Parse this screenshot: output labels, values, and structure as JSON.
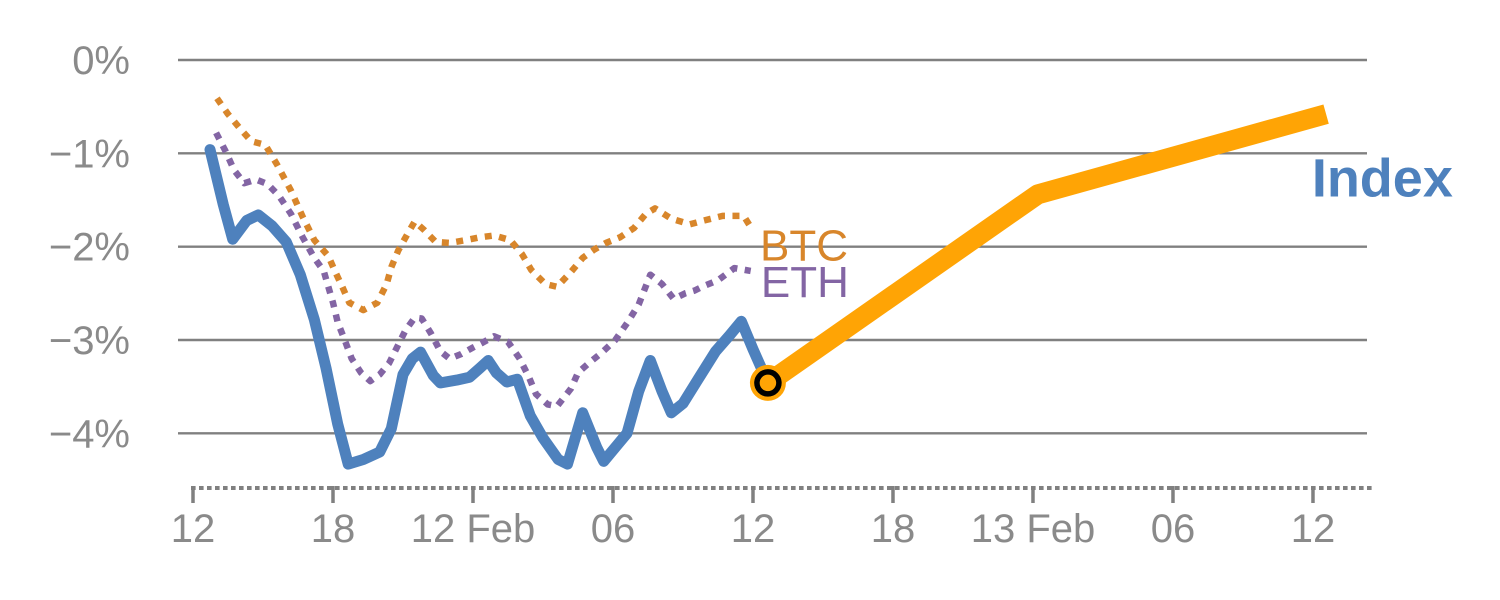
{
  "colors": {
    "index_blue": "#4E81BD",
    "btc_orange": "#D8862B",
    "eth_purple": "#8365A4",
    "forecast_amber": "#FFA405",
    "marker_ring_black": "#000000",
    "grid_gray": "#808080",
    "tick_text_gray": "#8A8A8A",
    "background": "#FFFFFF"
  },
  "chart_data": {
    "type": "line",
    "title": "",
    "grid": "horizontal",
    "legend_position": "inline-end-labels",
    "x_axis": {
      "unit": "time (6-hour major ticks)",
      "tick_labels": [
        "12",
        "18",
        "12 Feb",
        "06",
        "12",
        "18",
        "13 Feb",
        "06",
        "12"
      ],
      "tick_hours": [
        0,
        6,
        12,
        18,
        24,
        30,
        36,
        42,
        48
      ],
      "range_hours": [
        0,
        50.5
      ],
      "style": "dashed-minor-comb"
    },
    "y_axis": {
      "tick_labels": [
        "0%",
        "−1%",
        "−2%",
        "−3%",
        "−4%"
      ],
      "tick_values": [
        0,
        -1,
        -2,
        -3,
        -4
      ],
      "range": [
        -4.75,
        0.3
      ]
    },
    "series": [
      {
        "name": "BTC",
        "line_style": "dotted",
        "color_key": "btc_orange",
        "points": [
          [
            1.03,
            -0.41
          ],
          [
            1.5,
            -0.58
          ],
          [
            2.0,
            -0.73
          ],
          [
            2.5,
            -0.87
          ],
          [
            3.1,
            -0.91
          ],
          [
            3.6,
            -1.12
          ],
          [
            4.2,
            -1.4
          ],
          [
            4.7,
            -1.68
          ],
          [
            5.2,
            -1.93
          ],
          [
            5.8,
            -2.1
          ],
          [
            6.1,
            -2.27
          ],
          [
            6.4,
            -2.43
          ],
          [
            6.7,
            -2.6
          ],
          [
            7.3,
            -2.68
          ],
          [
            7.9,
            -2.6
          ],
          [
            8.3,
            -2.4
          ],
          [
            8.5,
            -2.22
          ],
          [
            8.8,
            -2.04
          ],
          [
            9.2,
            -1.86
          ],
          [
            9.5,
            -1.73
          ],
          [
            9.9,
            -1.82
          ],
          [
            10.4,
            -1.95
          ],
          [
            11.0,
            -1.96
          ],
          [
            11.7,
            -1.93
          ],
          [
            12.3,
            -1.9
          ],
          [
            12.9,
            -1.88
          ],
          [
            13.6,
            -1.93
          ],
          [
            14.1,
            -2.08
          ],
          [
            14.5,
            -2.25
          ],
          [
            15.1,
            -2.4
          ],
          [
            15.6,
            -2.43
          ],
          [
            16.2,
            -2.27
          ],
          [
            16.7,
            -2.12
          ],
          [
            17.2,
            -2.03
          ],
          [
            17.7,
            -1.96
          ],
          [
            18.3,
            -1.9
          ],
          [
            18.9,
            -1.8
          ],
          [
            19.4,
            -1.65
          ],
          [
            19.8,
            -1.59
          ],
          [
            20.5,
            -1.7
          ],
          [
            21.3,
            -1.76
          ],
          [
            21.9,
            -1.72
          ],
          [
            22.7,
            -1.67
          ],
          [
            23.6,
            -1.67
          ],
          [
            24.0,
            -1.83
          ]
        ]
      },
      {
        "name": "ETH",
        "line_style": "dotted",
        "color_key": "eth_purple",
        "points": [
          [
            0.99,
            -0.78
          ],
          [
            1.4,
            -0.98
          ],
          [
            1.76,
            -1.18
          ],
          [
            2.2,
            -1.32
          ],
          [
            2.7,
            -1.28
          ],
          [
            3.2,
            -1.33
          ],
          [
            3.7,
            -1.46
          ],
          [
            4.2,
            -1.65
          ],
          [
            4.7,
            -1.9
          ],
          [
            5.2,
            -2.12
          ],
          [
            5.6,
            -2.26
          ],
          [
            6.0,
            -2.6
          ],
          [
            6.2,
            -2.81
          ],
          [
            6.5,
            -3.0
          ],
          [
            6.8,
            -3.2
          ],
          [
            7.2,
            -3.35
          ],
          [
            7.6,
            -3.44
          ],
          [
            8.0,
            -3.37
          ],
          [
            8.4,
            -3.25
          ],
          [
            8.7,
            -3.1
          ],
          [
            9.1,
            -2.9
          ],
          [
            9.5,
            -2.76
          ],
          [
            9.8,
            -2.77
          ],
          [
            10.2,
            -2.93
          ],
          [
            10.6,
            -3.12
          ],
          [
            11.0,
            -3.2
          ],
          [
            11.5,
            -3.15
          ],
          [
            12.0,
            -3.08
          ],
          [
            12.4,
            -3.03
          ],
          [
            12.9,
            -2.96
          ],
          [
            13.5,
            -3.02
          ],
          [
            14.0,
            -3.2
          ],
          [
            14.4,
            -3.4
          ],
          [
            14.7,
            -3.58
          ],
          [
            15.2,
            -3.69
          ],
          [
            15.6,
            -3.71
          ],
          [
            16.2,
            -3.52
          ],
          [
            16.5,
            -3.35
          ],
          [
            17.0,
            -3.24
          ],
          [
            17.5,
            -3.14
          ],
          [
            18.1,
            -3.0
          ],
          [
            18.6,
            -2.82
          ],
          [
            19.1,
            -2.62
          ],
          [
            19.6,
            -2.3
          ],
          [
            20.1,
            -2.4
          ],
          [
            20.6,
            -2.56
          ],
          [
            21.1,
            -2.5
          ],
          [
            21.5,
            -2.47
          ],
          [
            21.9,
            -2.42
          ],
          [
            22.5,
            -2.36
          ],
          [
            23.2,
            -2.23
          ],
          [
            23.9,
            -2.26
          ]
        ]
      },
      {
        "name": "Index",
        "line_style": "solid",
        "color_key": "index_blue",
        "points": [
          [
            0.73,
            -0.96
          ],
          [
            1.3,
            -1.55
          ],
          [
            1.7,
            -1.92
          ],
          [
            2.3,
            -1.72
          ],
          [
            2.8,
            -1.66
          ],
          [
            3.4,
            -1.78
          ],
          [
            4.0,
            -1.95
          ],
          [
            4.6,
            -2.3
          ],
          [
            5.2,
            -2.78
          ],
          [
            5.7,
            -3.3
          ],
          [
            6.2,
            -3.9
          ],
          [
            6.65,
            -4.33
          ],
          [
            7.3,
            -4.28
          ],
          [
            8.0,
            -4.2
          ],
          [
            8.5,
            -3.95
          ],
          [
            9.0,
            -3.37
          ],
          [
            9.4,
            -3.2
          ],
          [
            9.75,
            -3.13
          ],
          [
            10.3,
            -3.38
          ],
          [
            10.6,
            -3.46
          ],
          [
            11.3,
            -3.43
          ],
          [
            11.85,
            -3.4
          ],
          [
            12.3,
            -3.3
          ],
          [
            12.65,
            -3.22
          ],
          [
            13.0,
            -3.35
          ],
          [
            13.45,
            -3.45
          ],
          [
            13.9,
            -3.42
          ],
          [
            14.45,
            -3.81
          ],
          [
            15.0,
            -4.05
          ],
          [
            15.65,
            -4.28
          ],
          [
            16.05,
            -4.33
          ],
          [
            16.7,
            -3.78
          ],
          [
            17.3,
            -4.15
          ],
          [
            17.6,
            -4.3
          ],
          [
            18.2,
            -4.12
          ],
          [
            18.6,
            -4.0
          ],
          [
            19.1,
            -3.55
          ],
          [
            19.6,
            -3.22
          ],
          [
            20.1,
            -3.55
          ],
          [
            20.5,
            -3.78
          ],
          [
            21.0,
            -3.68
          ],
          [
            21.7,
            -3.4
          ],
          [
            22.4,
            -3.12
          ],
          [
            23.0,
            -2.95
          ],
          [
            23.5,
            -2.8
          ],
          [
            24.0,
            -3.1
          ],
          [
            24.64,
            -3.46
          ]
        ]
      },
      {
        "name": "Index projection",
        "line_style": "thick-solid",
        "color_key": "forecast_amber",
        "points": [
          [
            24.64,
            -3.46
          ],
          [
            36.2,
            -1.44
          ],
          [
            48.56,
            -0.58
          ]
        ]
      }
    ],
    "marker": {
      "series": "Index",
      "t": 24.64,
      "value": -3.46
    },
    "annotations": [
      {
        "text": "BTC",
        "t": 24.3,
        "value": -2.15,
        "color_key": "btc_orange",
        "size": 44,
        "bold": false
      },
      {
        "text": "ETH",
        "t": 24.34,
        "value": -2.54,
        "color_key": "eth_purple",
        "size": 44,
        "bold": false
      },
      {
        "text": "Index",
        "t": 47.95,
        "value": -1.46,
        "color_key": "index_blue",
        "size": 54,
        "bold": true
      }
    ]
  }
}
